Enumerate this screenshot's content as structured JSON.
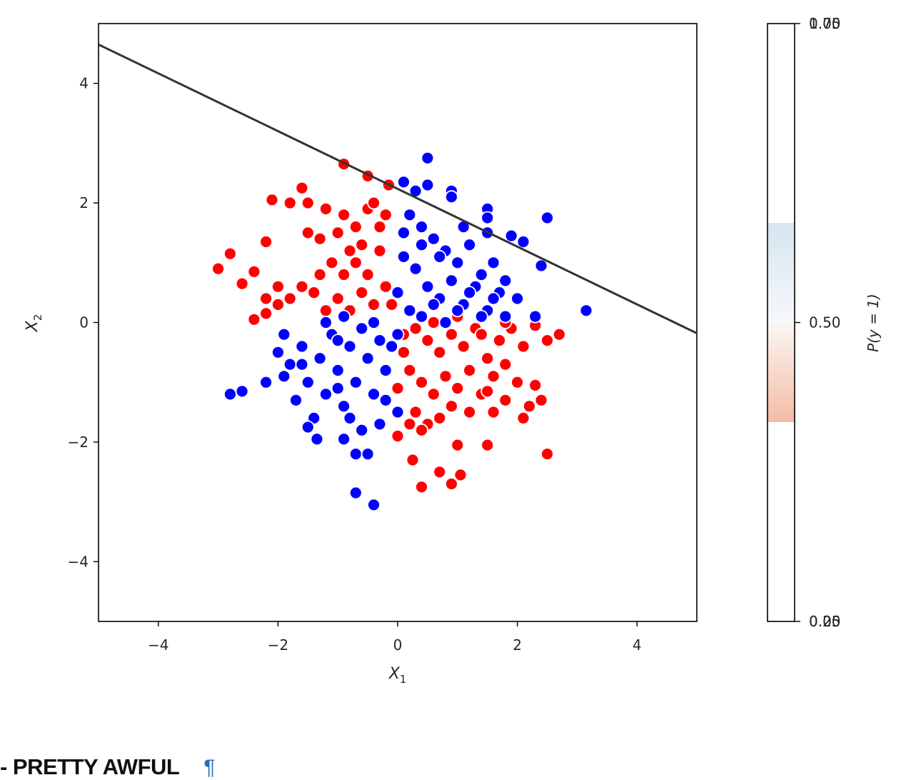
{
  "chart_data": {
    "type": "scatter",
    "xlabel": "X",
    "xlabel_sub": "1",
    "ylabel": "X",
    "ylabel_sub": "2",
    "xlim": [
      -5,
      5
    ],
    "ylim": [
      -5,
      5
    ],
    "x_ticks": [
      -4,
      -2,
      0,
      2,
      4
    ],
    "x_tick_labels": [
      "−4",
      "−2",
      "0",
      "2",
      "4"
    ],
    "y_ticks": [
      -4,
      -2,
      0,
      2,
      4
    ],
    "y_tick_labels": [
      "−4",
      "−2",
      "0",
      "2",
      "4"
    ],
    "decision_boundary": {
      "x": [
        -5,
        5
      ],
      "y": [
        4.65,
        -0.18
      ]
    },
    "colors": {
      "class_red": "#ff0000",
      "class_blue": "#0000ff",
      "boundary": "#333333"
    },
    "series": [
      {
        "color": "red",
        "points": [
          [
            -3.0,
            0.9
          ],
          [
            -2.8,
            1.15
          ],
          [
            -2.6,
            0.65
          ],
          [
            -2.4,
            0.85
          ],
          [
            -2.4,
            0.05
          ],
          [
            -2.2,
            0.4
          ],
          [
            -2.2,
            0.15
          ],
          [
            -2.2,
            1.35
          ],
          [
            -2.0,
            0.3
          ],
          [
            -2.0,
            0.6
          ],
          [
            -1.8,
            0.4
          ],
          [
            -1.6,
            0.6
          ],
          [
            -1.5,
            1.5
          ],
          [
            -1.4,
            0.5
          ],
          [
            -1.3,
            0.8
          ],
          [
            -1.2,
            0.2
          ],
          [
            -1.1,
            1.0
          ],
          [
            -1.0,
            0.4
          ],
          [
            -0.9,
            0.8
          ],
          [
            -0.8,
            0.2
          ],
          [
            -0.7,
            1.0
          ],
          [
            -0.6,
            0.5
          ],
          [
            -0.5,
            0.8
          ],
          [
            -0.4,
            0.3
          ],
          [
            -0.3,
            1.2
          ],
          [
            -0.2,
            0.6
          ],
          [
            -0.1,
            0.3
          ],
          [
            -1.8,
            2.0
          ],
          [
            -1.5,
            2.0
          ],
          [
            -1.2,
            1.9
          ],
          [
            -0.9,
            1.8
          ],
          [
            -0.7,
            1.6
          ],
          [
            -0.5,
            1.9
          ],
          [
            -0.4,
            2.0
          ],
          [
            -1.6,
            2.25
          ],
          [
            -2.1,
            2.05
          ],
          [
            -0.9,
            2.65
          ],
          [
            -0.5,
            2.45
          ],
          [
            -0.15,
            2.3
          ],
          [
            -0.8,
            1.2
          ],
          [
            -0.6,
            1.3
          ],
          [
            -1.0,
            1.5
          ],
          [
            -0.3,
            1.6
          ],
          [
            -1.3,
            1.4
          ],
          [
            -0.2,
            1.8
          ],
          [
            0.3,
            -0.1
          ],
          [
            0.5,
            -0.3
          ],
          [
            0.7,
            -0.5
          ],
          [
            0.9,
            -0.2
          ],
          [
            1.1,
            -0.4
          ],
          [
            1.3,
            -0.1
          ],
          [
            1.5,
            -0.6
          ],
          [
            1.7,
            -0.3
          ],
          [
            1.9,
            -0.1
          ],
          [
            2.1,
            -0.4
          ],
          [
            2.3,
            -0.05
          ],
          [
            2.5,
            -0.3
          ],
          [
            2.7,
            -0.2
          ],
          [
            0.2,
            -0.8
          ],
          [
            0.4,
            -1.0
          ],
          [
            0.6,
            -1.2
          ],
          [
            0.8,
            -0.9
          ],
          [
            1.0,
            -1.1
          ],
          [
            1.2,
            -0.8
          ],
          [
            1.4,
            -1.2
          ],
          [
            1.6,
            -0.9
          ],
          [
            1.8,
            -1.3
          ],
          [
            2.0,
            -1.0
          ],
          [
            2.2,
            -1.4
          ],
          [
            2.4,
            -1.3
          ],
          [
            0.3,
            -1.5
          ],
          [
            0.5,
            -1.7
          ],
          [
            0.7,
            -1.6
          ],
          [
            0.9,
            -1.4
          ],
          [
            1.2,
            -1.5
          ],
          [
            1.6,
            -1.5
          ],
          [
            2.1,
            -1.6
          ],
          [
            0.4,
            -1.8
          ],
          [
            0.0,
            -1.9
          ],
          [
            0.2,
            -1.7
          ],
          [
            0.1,
            -0.5
          ],
          [
            0.0,
            -1.1
          ],
          [
            1.0,
            -2.05
          ],
          [
            1.5,
            -2.05
          ],
          [
            2.5,
            -2.2
          ],
          [
            0.25,
            -2.3
          ],
          [
            0.4,
            -2.75
          ],
          [
            0.7,
            -2.5
          ],
          [
            0.9,
            -2.7
          ],
          [
            1.05,
            -2.55
          ],
          [
            0.1,
            -0.2
          ],
          [
            0.6,
            0.0
          ],
          [
            1.0,
            0.1
          ],
          [
            1.4,
            -0.2
          ],
          [
            1.8,
            0.0
          ],
          [
            2.3,
            -1.05
          ],
          [
            1.5,
            -1.15
          ],
          [
            1.8,
            -0.7
          ]
        ]
      },
      {
        "color": "blue",
        "points": [
          [
            0.1,
            2.35
          ],
          [
            0.3,
            2.2
          ],
          [
            0.5,
            2.3
          ],
          [
            0.5,
            2.75
          ],
          [
            0.9,
            2.2
          ],
          [
            0.9,
            2.1
          ],
          [
            1.5,
            1.9
          ],
          [
            1.5,
            1.75
          ],
          [
            1.9,
            1.45
          ],
          [
            2.1,
            1.35
          ],
          [
            2.5,
            1.75
          ],
          [
            2.4,
            0.95
          ],
          [
            3.15,
            0.2
          ],
          [
            2.3,
            0.1
          ],
          [
            0.2,
            1.8
          ],
          [
            0.4,
            1.6
          ],
          [
            0.6,
            1.4
          ],
          [
            0.8,
            1.2
          ],
          [
            1.0,
            1.0
          ],
          [
            1.2,
            1.3
          ],
          [
            1.4,
            0.8
          ],
          [
            1.6,
            1.0
          ],
          [
            1.8,
            0.7
          ],
          [
            2.0,
            0.4
          ],
          [
            0.1,
            1.1
          ],
          [
            0.3,
            0.9
          ],
          [
            0.5,
            0.6
          ],
          [
            0.7,
            0.4
          ],
          [
            0.9,
            0.7
          ],
          [
            1.1,
            0.3
          ],
          [
            1.3,
            0.6
          ],
          [
            1.5,
            0.2
          ],
          [
            1.7,
            0.5
          ],
          [
            0.0,
            0.5
          ],
          [
            0.2,
            0.2
          ],
          [
            0.4,
            0.1
          ],
          [
            0.6,
            0.3
          ],
          [
            0.8,
            0.0
          ],
          [
            1.0,
            0.2
          ],
          [
            1.2,
            0.5
          ],
          [
            1.4,
            0.1
          ],
          [
            1.6,
            0.4
          ],
          [
            1.8,
            0.1
          ],
          [
            0.1,
            1.5
          ],
          [
            0.4,
            1.3
          ],
          [
            0.7,
            1.1
          ],
          [
            1.1,
            1.6
          ],
          [
            1.5,
            1.5
          ],
          [
            -2.8,
            -1.2
          ],
          [
            -2.6,
            -1.15
          ],
          [
            -2.2,
            -1.0
          ],
          [
            -2.0,
            -0.5
          ],
          [
            -1.9,
            -0.2
          ],
          [
            -1.8,
            -0.7
          ],
          [
            -1.7,
            -1.3
          ],
          [
            -1.6,
            -0.4
          ],
          [
            -1.5,
            -1.0
          ],
          [
            -1.4,
            -1.6
          ],
          [
            -1.3,
            -0.6
          ],
          [
            -1.2,
            -1.2
          ],
          [
            -1.1,
            -0.2
          ],
          [
            -1.0,
            -0.8
          ],
          [
            -0.9,
            -1.4
          ],
          [
            -0.8,
            -0.4
          ],
          [
            -0.7,
            -1.0
          ],
          [
            -0.6,
            -0.1
          ],
          [
            -0.5,
            -0.6
          ],
          [
            -0.4,
            -1.2
          ],
          [
            -0.3,
            -0.3
          ],
          [
            -0.2,
            -0.8
          ],
          [
            -0.1,
            -0.4
          ],
          [
            0.0,
            -0.2
          ],
          [
            -1.5,
            -1.75
          ],
          [
            -1.35,
            -1.95
          ],
          [
            -0.9,
            -1.95
          ],
          [
            -0.7,
            -2.2
          ],
          [
            -0.5,
            -2.2
          ],
          [
            -0.7,
            -2.85
          ],
          [
            -0.4,
            -3.05
          ],
          [
            -1.0,
            -0.3
          ],
          [
            -0.8,
            -1.6
          ],
          [
            -0.6,
            -1.8
          ],
          [
            -1.2,
            0.0
          ],
          [
            -0.4,
            0.0
          ],
          [
            0.0,
            -1.5
          ],
          [
            -0.3,
            -1.7
          ],
          [
            -1.9,
            -0.9
          ],
          [
            -1.6,
            -0.7
          ],
          [
            -1.0,
            -1.1
          ],
          [
            -0.2,
            -1.3
          ],
          [
            -0.9,
            0.1
          ]
        ]
      }
    ]
  },
  "colorbar": {
    "label": "P(y = 1)",
    "ticks": [
      {
        "value": 0.0,
        "labels": [
          "0.00",
          "0.25"
        ]
      },
      {
        "value": 0.5,
        "labels": [
          "0.50"
        ]
      },
      {
        "value": 1.0,
        "labels": [
          "0.75",
          "1.00"
        ]
      }
    ],
    "bands": [
      {
        "from": 0.0,
        "to": 0.333,
        "color": "#ffffff"
      },
      {
        "from": 0.333,
        "to": 0.5,
        "color_bottom": "#f4bca4",
        "color_top": "#fbf6f4"
      },
      {
        "from": 0.5,
        "to": 0.667,
        "color_bottom": "#f6f8fa",
        "color_top": "#d6e5ef"
      },
      {
        "from": 0.667,
        "to": 1.0,
        "color": "#ffffff"
      }
    ]
  },
  "footer": {
    "heading": "- PRETTY AWFUL",
    "anchor": "¶"
  }
}
